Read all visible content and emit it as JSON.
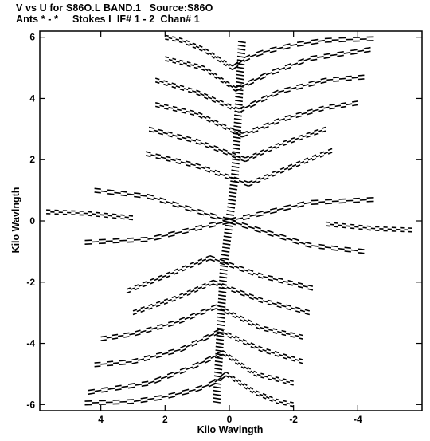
{
  "header": {
    "line1": "V vs U for S86O.L BAND.1   Source:S86O",
    "line2": "Ants * - *     Stokes I  IF# 1 - 2  Chan# 1"
  },
  "chart_data": {
    "type": "scatter",
    "title": "V vs U for S86O.L BAND.1   Source:S86O",
    "xlabel": "Kilo Wavlngth",
    "ylabel": "Kilo Wavlngth",
    "xlim": [
      5.9,
      -6.0
    ],
    "ylim": [
      -6.2,
      6.2
    ],
    "xticks": [
      "4",
      "2",
      "0",
      "-2",
      "-4"
    ],
    "xtick_values": [
      4,
      2,
      0,
      -2,
      -4
    ],
    "yticks": [
      "6",
      "4",
      "2",
      "0",
      "-2",
      "-4",
      "-6"
    ],
    "ytick_values": [
      6,
      4,
      2,
      0,
      -2,
      -4,
      -6
    ],
    "grid": false,
    "mark_color": "#000000",
    "series": [
      {
        "description_points": "radial uv-coverage tracks; central spine near u=0, arms to upper-left/right and lower-left/right",
        "tracks": [
          [
            [
              -0.1,
              5.0
            ],
            [
              -0.5,
              5.3
            ],
            [
              -1.0,
              5.5
            ],
            [
              -2.0,
              5.75
            ],
            [
              -3.0,
              5.9
            ],
            [
              -4.5,
              5.95
            ]
          ],
          [
            [
              -0.1,
              5.0
            ],
            [
              0.8,
              5.6
            ],
            [
              1.5,
              5.9
            ],
            [
              2.0,
              6.0
            ]
          ],
          [
            [
              -0.2,
              4.3
            ],
            [
              -1.2,
              4.8
            ],
            [
              -2.5,
              5.3
            ],
            [
              -4.4,
              5.6
            ]
          ],
          [
            [
              -0.2,
              4.3
            ],
            [
              0.8,
              5.0
            ],
            [
              2.0,
              5.3
            ]
          ],
          [
            [
              -0.3,
              3.6
            ],
            [
              -1.5,
              4.2
            ],
            [
              -3.0,
              4.6
            ],
            [
              -4.2,
              4.7
            ]
          ],
          [
            [
              -0.3,
              3.6
            ],
            [
              1.0,
              4.2
            ],
            [
              2.3,
              4.6
            ]
          ],
          [
            [
              -0.4,
              2.8
            ],
            [
              -1.6,
              3.3
            ],
            [
              -3.0,
              3.7
            ],
            [
              -4.0,
              3.85
            ]
          ],
          [
            [
              -0.4,
              2.8
            ],
            [
              1.0,
              3.5
            ],
            [
              2.3,
              3.8
            ]
          ],
          [
            [
              -0.5,
              2.0
            ],
            [
              -1.6,
              2.5
            ],
            [
              -3.0,
              3.0
            ]
          ],
          [
            [
              -0.5,
              2.0
            ],
            [
              1.0,
              2.6
            ],
            [
              2.5,
              3.0
            ]
          ],
          [
            [
              -0.6,
              1.2
            ],
            [
              -2.0,
              1.8
            ],
            [
              -3.2,
              2.3
            ]
          ],
          [
            [
              -0.6,
              1.2
            ],
            [
              1.0,
              1.8
            ],
            [
              2.6,
              2.2
            ]
          ],
          [
            [
              0.0,
              0.0
            ],
            [
              2.5,
              0.8
            ],
            [
              4.2,
              1.0
            ]
          ],
          [
            [
              0.0,
              0.0
            ],
            [
              -2.5,
              0.6
            ],
            [
              -4.5,
              0.7
            ]
          ],
          [
            [
              0.0,
              0.0
            ],
            [
              2.5,
              -0.6
            ],
            [
              4.5,
              -0.7
            ]
          ],
          [
            [
              0.0,
              0.0
            ],
            [
              -2.5,
              -0.8
            ],
            [
              -4.2,
              -1.0
            ]
          ],
          [
            [
              5.7,
              0.3
            ],
            [
              4.5,
              0.25
            ],
            [
              3.0,
              0.1
            ]
          ],
          [
            [
              -3.0,
              -0.1
            ],
            [
              -4.5,
              -0.25
            ],
            [
              -5.7,
              -0.3
            ]
          ],
          [
            [
              0.6,
              -1.2
            ],
            [
              2.0,
              -1.8
            ],
            [
              3.2,
              -2.3
            ]
          ],
          [
            [
              0.6,
              -1.2
            ],
            [
              -1.0,
              -1.8
            ],
            [
              -2.6,
              -2.2
            ]
          ],
          [
            [
              0.5,
              -2.0
            ],
            [
              1.6,
              -2.5
            ],
            [
              3.0,
              -3.0
            ]
          ],
          [
            [
              0.5,
              -2.0
            ],
            [
              -1.0,
              -2.6
            ],
            [
              -2.5,
              -3.0
            ]
          ],
          [
            [
              0.4,
              -2.8
            ],
            [
              1.6,
              -3.3
            ],
            [
              3.0,
              -3.7
            ],
            [
              4.0,
              -3.85
            ]
          ],
          [
            [
              0.4,
              -2.8
            ],
            [
              -1.0,
              -3.5
            ],
            [
              -2.3,
              -3.8
            ]
          ],
          [
            [
              0.3,
              -3.6
            ],
            [
              1.5,
              -4.2
            ],
            [
              3.0,
              -4.6
            ],
            [
              4.2,
              -4.7
            ]
          ],
          [
            [
              0.3,
              -3.6
            ],
            [
              -1.0,
              -4.2
            ],
            [
              -2.3,
              -4.6
            ]
          ],
          [
            [
              0.2,
              -4.3
            ],
            [
              1.2,
              -4.8
            ],
            [
              2.5,
              -5.3
            ],
            [
              4.4,
              -5.6
            ]
          ],
          [
            [
              0.2,
              -4.3
            ],
            [
              -0.8,
              -5.0
            ],
            [
              -2.0,
              -5.3
            ]
          ],
          [
            [
              0.1,
              -5.0
            ],
            [
              0.5,
              -5.3
            ],
            [
              1.0,
              -5.5
            ],
            [
              2.0,
              -5.75
            ],
            [
              3.0,
              -5.9
            ],
            [
              4.5,
              -5.95
            ]
          ],
          [
            [
              0.1,
              -5.0
            ],
            [
              -0.8,
              -5.6
            ],
            [
              -1.5,
              -5.9
            ],
            [
              -2.0,
              -6.0
            ]
          ]
        ]
      }
    ]
  }
}
